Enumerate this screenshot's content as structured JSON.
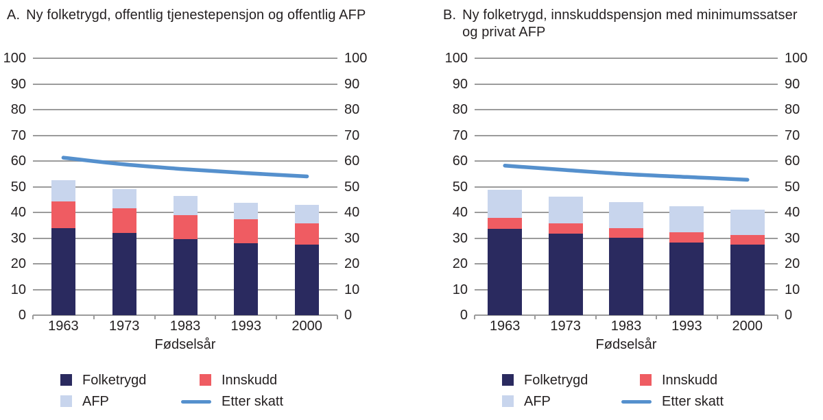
{
  "colors": {
    "folketrygd": "#2a2a5f",
    "innskudd": "#ef5c62",
    "afp": "#c8d5ed",
    "etter_skatt": "#5590cd",
    "grid": "#9b9b9b",
    "text": "#252122",
    "background": "#ffffff"
  },
  "panels": [
    {
      "title_prefix": "A.",
      "title_text": "Ny folketrygd, offentlig tjenestepensjon og offentlig AFP",
      "xlabel": "Fødselsår"
    },
    {
      "title_prefix": "B.",
      "title_text": "Ny folketrygd, innskuddspensjon med minimumssatser og privat AFP",
      "xlabel": "Fødselsår"
    }
  ],
  "chart_data": [
    {
      "type": "bar",
      "subtype": "stacked-bars-with-line",
      "title": "A. Ny folketrygd, offentlig tjenestepensjon og offentlig AFP",
      "categories": [
        "1963",
        "1973",
        "1983",
        "1993",
        "2000"
      ],
      "stacked": true,
      "series": [
        {
          "name": "Folketrygd",
          "kind": "bar",
          "color_key": "folketrygd",
          "values": [
            33.8,
            31.9,
            29.7,
            27.9,
            27.5
          ]
        },
        {
          "name": "Innskudd",
          "kind": "bar",
          "color_key": "innskudd",
          "values": [
            10.4,
            9.7,
            9.2,
            9.5,
            8.3
          ]
        },
        {
          "name": "AFP",
          "kind": "bar",
          "color_key": "afp",
          "values": [
            8.3,
            7.5,
            7.4,
            6.4,
            7.1
          ]
        },
        {
          "name": "Etter skatt",
          "kind": "line",
          "color_key": "etter_skatt",
          "values": [
            61.3,
            58.7,
            56.8,
            55.3,
            54.0
          ]
        }
      ],
      "stack_totals": [
        52.5,
        49.1,
        46.3,
        43.8,
        42.9
      ],
      "xlabel": "Fødselsår",
      "ylabel": "",
      "ylim": [
        0,
        100
      ],
      "yticks": [
        0,
        10,
        20,
        30,
        40,
        50,
        60,
        70,
        80,
        90,
        100
      ],
      "dual_y_axis_labels": true,
      "grid": true,
      "legend_position": "bottom"
    },
    {
      "type": "bar",
      "subtype": "stacked-bars-with-line",
      "title": "B. Ny folketrygd, innskuddspensjon med minimumssatser og privat AFP",
      "categories": [
        "1963",
        "1973",
        "1983",
        "1993",
        "2000"
      ],
      "stacked": true,
      "series": [
        {
          "name": "Folketrygd",
          "kind": "bar",
          "color_key": "folketrygd",
          "values": [
            33.6,
            31.8,
            30.1,
            28.3,
            27.5
          ]
        },
        {
          "name": "Innskudd",
          "kind": "bar",
          "color_key": "innskudd",
          "values": [
            4.3,
            4.0,
            3.8,
            4.0,
            3.7
          ]
        },
        {
          "name": "AFP",
          "kind": "bar",
          "color_key": "afp",
          "values": [
            10.8,
            10.3,
            10.0,
            10.0,
            9.9
          ]
        },
        {
          "name": "Etter skatt",
          "kind": "line",
          "color_key": "etter_skatt",
          "values": [
            58.2,
            56.5,
            54.9,
            53.8,
            52.7
          ]
        }
      ],
      "stack_totals": [
        48.7,
        46.1,
        43.9,
        42.3,
        41.1
      ],
      "xlabel": "Fødselsår",
      "ylabel": "",
      "ylim": [
        0,
        100
      ],
      "yticks": [
        0,
        10,
        20,
        30,
        40,
        50,
        60,
        70,
        80,
        90,
        100
      ],
      "dual_y_axis_labels": true,
      "grid": true,
      "legend_position": "bottom"
    }
  ]
}
